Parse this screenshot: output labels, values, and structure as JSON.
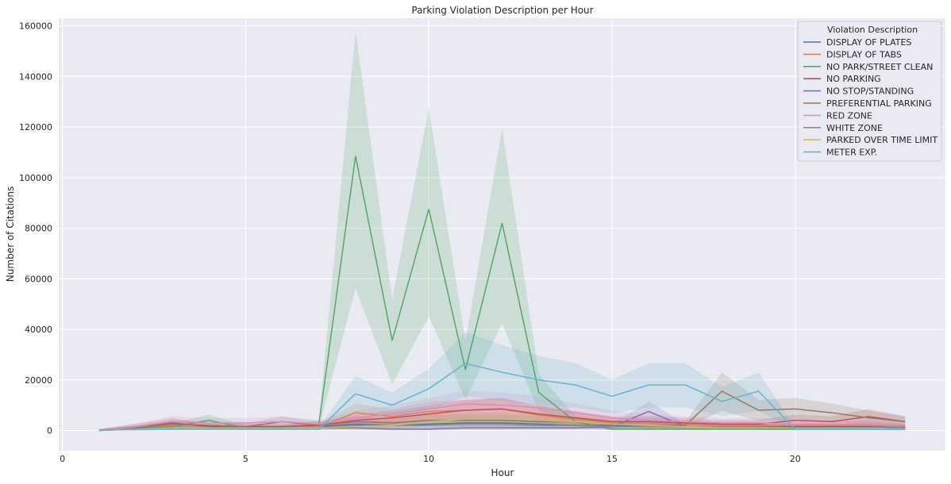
{
  "chart_data": {
    "type": "line",
    "title": "Parking Violation Description per Hour",
    "xlabel": "Hour",
    "ylabel": "Number of Citations",
    "xlim": [
      -0.1,
      24.1
    ],
    "ylim": [
      -8000,
      163000
    ],
    "xticks": [
      0,
      5,
      10,
      15,
      20
    ],
    "yticks": [
      0,
      20000,
      40000,
      60000,
      80000,
      100000,
      120000,
      140000,
      160000
    ],
    "grid": true,
    "legend_title": "Violation Description",
    "legend_position": "top-right",
    "x": [
      1,
      2,
      3,
      4,
      5,
      6,
      7,
      8,
      9,
      10,
      11,
      12,
      13,
      14,
      15,
      16,
      17,
      18,
      19,
      20,
      21,
      22,
      23
    ],
    "series": [
      {
        "name": "DISPLAY OF PLATES",
        "color": "#4c72b0",
        "values": [
          0,
          500,
          1000,
          1000,
          1000,
          1000,
          1500,
          2500,
          2000,
          2500,
          3000,
          3000,
          2500,
          2000,
          2000,
          2000,
          1500,
          1500,
          1500,
          1500,
          1500,
          1500,
          1000
        ]
      },
      {
        "name": "DISPLAY OF TABS",
        "color": "#dd8452",
        "values": [
          0,
          500,
          2000,
          1000,
          1000,
          1000,
          1500,
          7000,
          5500,
          7500,
          8000,
          8500,
          6000,
          4500,
          3000,
          3000,
          2500,
          2000,
          2000,
          2000,
          2000,
          2000,
          1500
        ]
      },
      {
        "name": "NO PARK/STREET CLEAN",
        "color": "#55a868",
        "values": [
          0,
          1000,
          1500,
          4000,
          1000,
          1000,
          2500,
          108500,
          35500,
          87500,
          24000,
          82000,
          15000,
          3500,
          500,
          500,
          500,
          500,
          500,
          500,
          500,
          500,
          500
        ]
      },
      {
        "name": "NO PARKING",
        "color": "#c44e52",
        "values": [
          0,
          1500,
          3000,
          1500,
          1500,
          1500,
          2000,
          4000,
          5000,
          6500,
          8000,
          8500,
          6500,
          5000,
          3500,
          3500,
          3000,
          2500,
          2500,
          4000,
          3500,
          5500,
          3500
        ]
      },
      {
        "name": "NO STOP/STANDING",
        "color": "#8172b3",
        "values": [
          0,
          500,
          1000,
          1000,
          1000,
          1000,
          1000,
          1000,
          500,
          500,
          1000,
          1000,
          1000,
          1000,
          1500,
          7500,
          1500,
          1500,
          1000,
          1000,
          1000,
          1000,
          1000
        ]
      },
      {
        "name": "PREFERENTIAL PARKING",
        "color": "#937860",
        "values": [
          0,
          1000,
          2500,
          2000,
          1500,
          3500,
          2000,
          3500,
          3000,
          4000,
          4000,
          4000,
          3500,
          3500,
          2500,
          2000,
          2000,
          15500,
          8000,
          8500,
          7000,
          5000,
          3500
        ]
      },
      {
        "name": "RED ZONE",
        "color": "#da8bc3",
        "values": [
          0,
          1500,
          3500,
          3000,
          3000,
          3500,
          2500,
          5000,
          6500,
          8500,
          10500,
          10000,
          9000,
          7000,
          5000,
          4000,
          3500,
          3000,
          3000,
          2500,
          2500,
          2500,
          2000
        ]
      },
      {
        "name": "WHITE ZONE",
        "color": "#8c8c8c",
        "values": [
          0,
          500,
          1000,
          1000,
          1000,
          1000,
          1000,
          2000,
          2000,
          2000,
          2500,
          2500,
          2000,
          2000,
          1500,
          1500,
          1500,
          1500,
          1500,
          1000,
          1000,
          1000,
          1000
        ]
      },
      {
        "name": "PARKED OVER TIME LIMIT",
        "color": "#ccb974",
        "values": [
          0,
          500,
          1000,
          1000,
          1000,
          1000,
          1000,
          1500,
          2000,
          3500,
          4500,
          4500,
          4000,
          3500,
          2500,
          2000,
          1500,
          1000,
          1000,
          1000,
          1000,
          1000,
          500
        ]
      },
      {
        "name": "METER EXP.",
        "color": "#64b5cd",
        "values": [
          0,
          500,
          500,
          500,
          500,
          500,
          500,
          14500,
          10000,
          16500,
          26500,
          23000,
          20000,
          18000,
          13500,
          18000,
          18000,
          11500,
          15500,
          500,
          500,
          500,
          500
        ]
      }
    ]
  }
}
